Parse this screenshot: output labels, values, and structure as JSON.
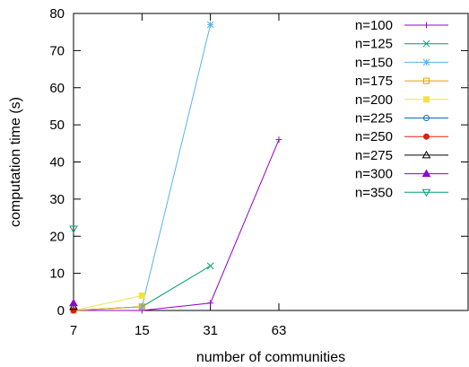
{
  "chart_data": {
    "type": "line",
    "xlabel": "number of communities",
    "ylabel": "computation time (s)",
    "ylim": [
      0,
      80
    ],
    "yticks": [
      0,
      10,
      20,
      30,
      40,
      50,
      60,
      70,
      80
    ],
    "xticks": [
      7,
      15,
      31,
      63
    ],
    "grid": false,
    "legend_position": "top-right",
    "series": [
      {
        "name": "n=100",
        "color": "#9400d3",
        "marker": "plus",
        "x": [
          7,
          15,
          31,
          63
        ],
        "values": [
          0,
          0,
          2,
          46
        ]
      },
      {
        "name": "n=125",
        "color": "#009e73",
        "marker": "cross",
        "x": [
          7,
          15,
          31
        ],
        "values": [
          0,
          1,
          12
        ]
      },
      {
        "name": "n=150",
        "color": "#56b4e9",
        "marker": "star",
        "x": [
          7,
          15,
          31
        ],
        "values": [
          0,
          1,
          77
        ]
      },
      {
        "name": "n=175",
        "color": "#e69f00",
        "marker": "square-open",
        "x": [
          7,
          15
        ],
        "values": [
          0,
          1
        ]
      },
      {
        "name": "n=200",
        "color": "#f0e442",
        "marker": "square-filled",
        "x": [
          7,
          15
        ],
        "values": [
          0,
          4
        ]
      },
      {
        "name": "n=225",
        "color": "#0072b2",
        "marker": "circle-open",
        "x": [
          7
        ],
        "values": [
          0
        ]
      },
      {
        "name": "n=250",
        "color": "#e51e10",
        "marker": "circle-filled",
        "x": [
          7
        ],
        "values": [
          0
        ]
      },
      {
        "name": "n=275",
        "color": "#000000",
        "marker": "triangle-open",
        "x": [
          7
        ],
        "values": [
          1
        ]
      },
      {
        "name": "n=300",
        "color": "#9400d3",
        "marker": "triangle-filled",
        "x": [
          7
        ],
        "values": [
          2
        ]
      },
      {
        "name": "n=350",
        "color": "#009e73",
        "marker": "triangle-down-open",
        "x": [
          7
        ],
        "values": [
          22
        ]
      }
    ]
  }
}
